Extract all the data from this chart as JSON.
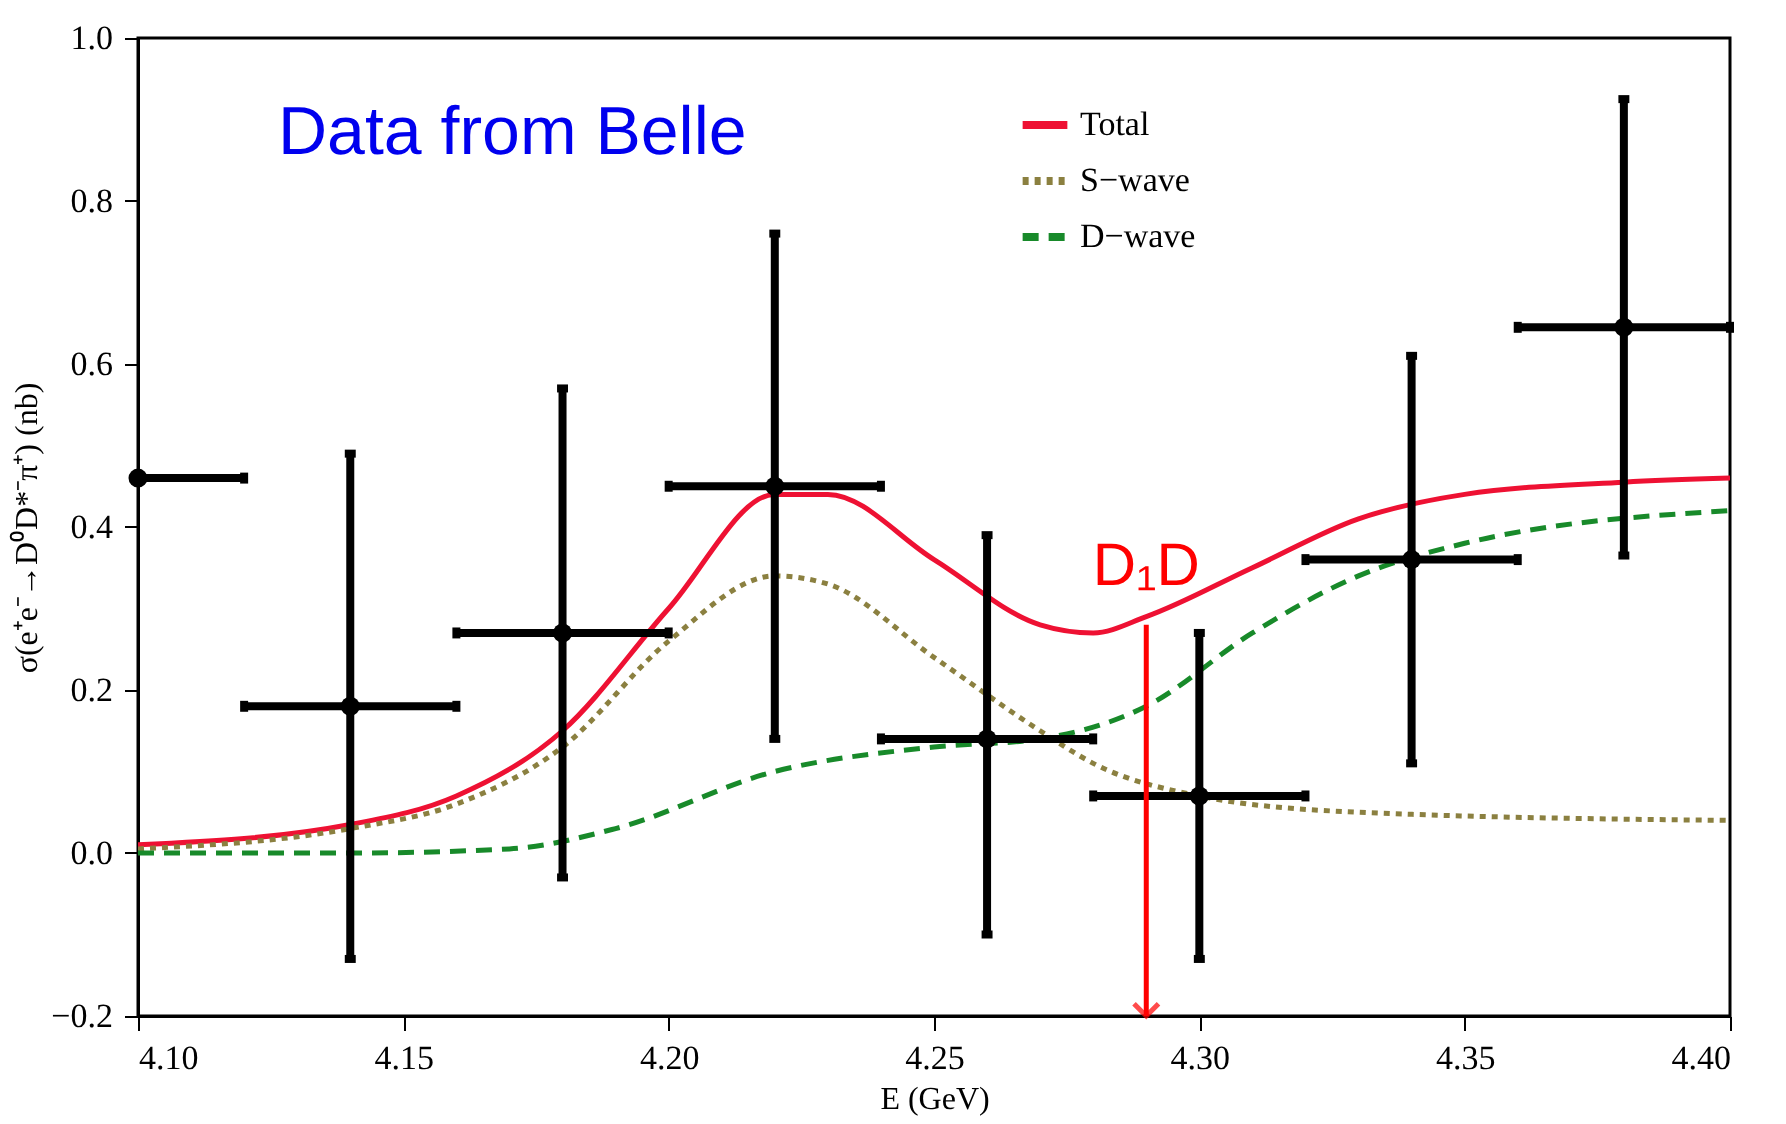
{
  "chart_data": {
    "type": "line",
    "xlabel": "E (GeV)",
    "ylabel": "σ(e⁺e⁻→D⁰D*⁻π⁺) (nb)",
    "xlim": [
      4.1,
      4.4
    ],
    "ylim": [
      -0.2,
      1.0
    ],
    "xticks": [
      {
        "value": 4.1,
        "label": "4.10"
      },
      {
        "value": 4.15,
        "label": "4.15"
      },
      {
        "value": 4.2,
        "label": "4.20"
      },
      {
        "value": 4.25,
        "label": "4.25"
      },
      {
        "value": 4.3,
        "label": "4.30"
      },
      {
        "value": 4.35,
        "label": "4.35"
      },
      {
        "value": 4.4,
        "label": "4.40"
      }
    ],
    "yticks": [
      {
        "value": -0.2,
        "label": "−0.2"
      },
      {
        "value": 0,
        "label": "0.0"
      },
      {
        "value": 0.2,
        "label": "0.2"
      },
      {
        "value": 0.4,
        "label": "0.4"
      },
      {
        "value": 0.6,
        "label": "0.6"
      },
      {
        "value": 0.8,
        "label": "0.8"
      },
      {
        "value": 1.0,
        "label": "1.0"
      }
    ],
    "grid": false,
    "legend": "top right",
    "series": [
      {
        "name": "Total",
        "color": "#ee1133",
        "line_style": "solid",
        "x": [
          4.1,
          4.14,
          4.16,
          4.18,
          4.2,
          4.22,
          4.23,
          4.25,
          4.27,
          4.28,
          4.29,
          4.31,
          4.33,
          4.35,
          4.38,
          4.4
        ],
        "values": [
          0.01,
          0.035,
          0.07,
          0.15,
          0.3,
          0.44,
          0.44,
          0.36,
          0.28,
          0.27,
          0.29,
          0.35,
          0.41,
          0.44,
          0.455,
          0.46
        ]
      },
      {
        "name": "S−wave",
        "color": "#8b8040",
        "line_style": "dotted",
        "x": [
          4.1,
          4.14,
          4.16,
          4.18,
          4.2,
          4.22,
          4.23,
          4.25,
          4.27,
          4.28,
          4.3,
          4.33,
          4.4
        ],
        "values": [
          0.005,
          0.03,
          0.06,
          0.13,
          0.26,
          0.34,
          0.33,
          0.24,
          0.15,
          0.11,
          0.07,
          0.05,
          0.04
        ]
      },
      {
        "name": "D−wave",
        "color": "#188a2a",
        "line_style": "dashed",
        "x": [
          4.1,
          4.14,
          4.17,
          4.19,
          4.22,
          4.25,
          4.27,
          4.29,
          4.31,
          4.33,
          4.35,
          4.4
        ],
        "values": [
          0.0,
          0.0,
          0.005,
          0.03,
          0.1,
          0.13,
          0.14,
          0.18,
          0.27,
          0.34,
          0.38,
          0.42
        ]
      },
      {
        "type": "scatter",
        "color": "#000000",
        "marker": "circle",
        "x": [
          4.1,
          4.14,
          4.18,
          4.22,
          4.26,
          4.3,
          4.34,
          4.38
        ],
        "values": [
          0.46,
          0.18,
          0.27,
          0.45,
          0.14,
          0.07,
          0.36,
          0.645
        ],
        "errors": [
          null,
          [
            -0.13,
            0.49
          ],
          [
            -0.03,
            0.57
          ],
          [
            0.14,
            0.76
          ],
          [
            -0.1,
            0.39
          ],
          [
            -0.13,
            0.27
          ],
          [
            0.11,
            0.61
          ],
          [
            0.365,
            0.925
          ]
        ],
        "xerrors": [
          [
            4.1,
            4.12
          ],
          0.02,
          0.02,
          0.02,
          0.02,
          0.02,
          0.02,
          0.02
        ]
      }
    ],
    "annotations": [
      "Data from Belle",
      {
        "text": "D₁D",
        "x": 4.29,
        "y": 0.28
      }
    ]
  }
}
